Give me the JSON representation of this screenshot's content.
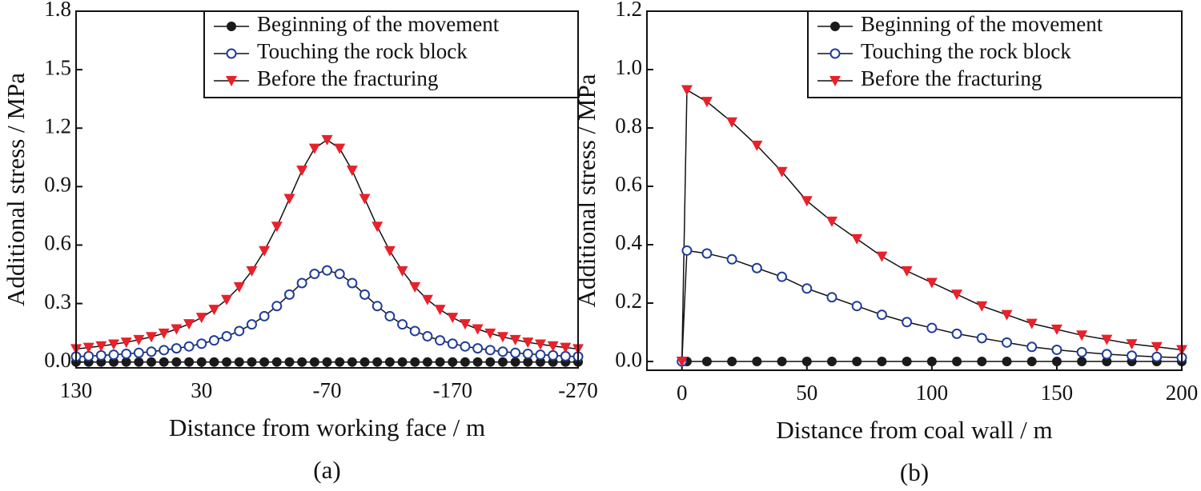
{
  "chart_data": [
    {
      "type": "line",
      "label": "(a)",
      "x_label": "Distance from working face / m",
      "y_label": "Additional stress / MPa",
      "x": [
        130,
        120,
        110,
        100,
        90,
        80,
        70,
        60,
        50,
        40,
        30,
        20,
        10,
        0,
        -10,
        -20,
        -30,
        -40,
        -50,
        -60,
        -70,
        -80,
        -90,
        -100,
        -110,
        -120,
        -130,
        -140,
        -150,
        -160,
        -170,
        -180,
        -190,
        -200,
        -210,
        -220,
        -230,
        -240,
        -250,
        -260,
        -270
      ],
      "xlim": [
        130,
        -270
      ],
      "xticks": [
        130,
        30,
        -70,
        -170,
        -270
      ],
      "ylim": [
        -0.03,
        1.8
      ],
      "yticks": [
        {
          "value": 0,
          "label": "0.0"
        },
        0.3,
        0.6,
        0.9,
        1.2,
        1.5,
        1.8
      ],
      "legend": "upper right",
      "series": [
        {
          "name": "Beginning of the movement",
          "color": "#1a1a1a",
          "marker": "filled-circle",
          "values": [
            0,
            0,
            0,
            0,
            0,
            0,
            0,
            0,
            0,
            0,
            0,
            0,
            0,
            0,
            0,
            0,
            0,
            0,
            0,
            0,
            0,
            0,
            0,
            0,
            0,
            0,
            0,
            0,
            0,
            0,
            0,
            0,
            0,
            0,
            0,
            0,
            0,
            0,
            0,
            0,
            0
          ]
        },
        {
          "name": "Touching the rock block",
          "color": "#1f3d99",
          "marker": "open-circle",
          "values": [
            0.028,
            0.03,
            0.034,
            0.037,
            0.042,
            0.047,
            0.053,
            0.061,
            0.07,
            0.08,
            0.094,
            0.111,
            0.132,
            0.159,
            0.193,
            0.235,
            0.287,
            0.346,
            0.405,
            0.452,
            0.47,
            0.452,
            0.405,
            0.346,
            0.287,
            0.235,
            0.193,
            0.159,
            0.132,
            0.111,
            0.094,
            0.08,
            0.07,
            0.061,
            0.053,
            0.047,
            0.042,
            0.037,
            0.034,
            0.03,
            0.028
          ]
        },
        {
          "name": "Before the fracturing",
          "color": "#e8212a",
          "marker": "down-triangle",
          "values": [
            0.067,
            0.074,
            0.082,
            0.091,
            0.101,
            0.114,
            0.129,
            0.147,
            0.169,
            0.195,
            0.228,
            0.269,
            0.32,
            0.385,
            0.467,
            0.57,
            0.695,
            0.838,
            0.983,
            1.096,
            1.14,
            1.096,
            0.983,
            0.838,
            0.695,
            0.57,
            0.467,
            0.385,
            0.32,
            0.269,
            0.228,
            0.195,
            0.169,
            0.147,
            0.129,
            0.114,
            0.101,
            0.091,
            0.082,
            0.074,
            0.067
          ]
        }
      ]
    },
    {
      "type": "line",
      "label": "(b)",
      "x_label": "Distance from coal wall / m",
      "y_label": "Additional stress / MPa",
      "x": [
        0,
        2,
        10,
        20,
        30,
        40,
        50,
        60,
        70,
        80,
        90,
        100,
        110,
        120,
        130,
        140,
        150,
        160,
        170,
        180,
        190,
        200
      ],
      "xlim": [
        -14,
        200
      ],
      "xticks": [
        0,
        50,
        100,
        150,
        200
      ],
      "ylim": [
        -0.03,
        1.2
      ],
      "yticks": [
        {
          "value": 0,
          "label": "0.0"
        },
        0.2,
        0.4,
        0.6,
        0.8,
        {
          "value": 1,
          "label": "1.0"
        },
        1.2
      ],
      "legend": "upper right",
      "series": [
        {
          "name": "Beginning of the movement",
          "color": "#1a1a1a",
          "marker": "filled-circle",
          "values": [
            0,
            0,
            0,
            0,
            0,
            0,
            0,
            0,
            0,
            0,
            0,
            0,
            0,
            0,
            0,
            0,
            0,
            0,
            0,
            0,
            0,
            0
          ]
        },
        {
          "name": "Touching the rock block",
          "color": "#1f3d99",
          "marker": "open-circle",
          "values": [
            0,
            0.38,
            0.37,
            0.35,
            0.32,
            0.29,
            0.25,
            0.22,
            0.19,
            0.16,
            0.135,
            0.115,
            0.095,
            0.08,
            0.065,
            0.05,
            0.04,
            0.032,
            0.025,
            0.02,
            0.016,
            0.013
          ]
        },
        {
          "name": "Before the fracturing",
          "color": "#e8212a",
          "marker": "down-triangle",
          "values": [
            0,
            0.93,
            0.89,
            0.82,
            0.74,
            0.65,
            0.55,
            0.48,
            0.42,
            0.36,
            0.31,
            0.27,
            0.23,
            0.19,
            0.16,
            0.13,
            0.11,
            0.09,
            0.075,
            0.06,
            0.05,
            0.04
          ]
        }
      ]
    }
  ]
}
